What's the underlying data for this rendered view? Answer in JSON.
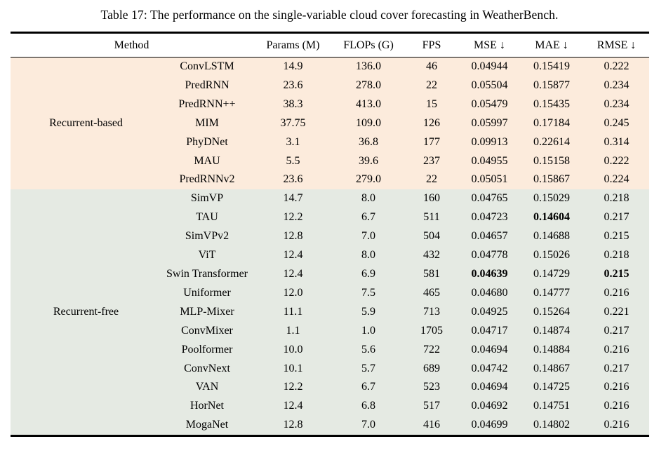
{
  "caption": "Table 17: The performance on the single-variable cloud cover forecasting in WeatherBench.",
  "table": {
    "header": {
      "method": "Method",
      "params": "Params (M)",
      "flops": "FLOPs (G)",
      "fps": "FPS",
      "mse": "MSE ↓",
      "mae": "MAE ↓",
      "rmse": "RMSE ↓"
    },
    "group_colors": {
      "recurrent_based": "#fcebdc",
      "recurrent_free": "#e5eae3"
    },
    "groups": [
      {
        "label": "Recurrent-based",
        "color": "#fcebdc",
        "rows": [
          {
            "cells": [
              "ConvLSTM",
              "14.9",
              "136.0",
              "46",
              "0.04944",
              "0.15419",
              "0.222"
            ],
            "bold": []
          },
          {
            "cells": [
              "PredRNN",
              "23.6",
              "278.0",
              "22",
              "0.05504",
              "0.15877",
              "0.234"
            ],
            "bold": []
          },
          {
            "cells": [
              "PredRNN++",
              "38.3",
              "413.0",
              "15",
              "0.05479",
              "0.15435",
              "0.234"
            ],
            "bold": []
          },
          {
            "cells": [
              "MIM",
              "37.75",
              "109.0",
              "126",
              "0.05997",
              "0.17184",
              "0.245"
            ],
            "bold": []
          },
          {
            "cells": [
              "PhyDNet",
              "3.1",
              "36.8",
              "177",
              "0.09913",
              "0.22614",
              "0.314"
            ],
            "bold": []
          },
          {
            "cells": [
              "MAU",
              "5.5",
              "39.6",
              "237",
              "0.04955",
              "0.15158",
              "0.222"
            ],
            "bold": []
          },
          {
            "cells": [
              "PredRNNv2",
              "23.6",
              "279.0",
              "22",
              "0.05051",
              "0.15867",
              "0.224"
            ],
            "bold": []
          }
        ]
      },
      {
        "label": "Recurrent-free",
        "color": "#e5eae3",
        "rows": [
          {
            "cells": [
              "SimVP",
              "14.7",
              "8.0",
              "160",
              "0.04765",
              "0.15029",
              "0.218"
            ],
            "bold": []
          },
          {
            "cells": [
              "TAU",
              "12.2",
              "6.7",
              "511",
              "0.04723",
              "0.14604",
              "0.217"
            ],
            "bold": [
              5
            ]
          },
          {
            "cells": [
              "SimVPv2",
              "12.8",
              "7.0",
              "504",
              "0.04657",
              "0.14688",
              "0.215"
            ],
            "bold": []
          },
          {
            "cells": [
              "ViT",
              "12.4",
              "8.0",
              "432",
              "0.04778",
              "0.15026",
              "0.218"
            ],
            "bold": []
          },
          {
            "cells": [
              "Swin Transformer",
              "12.4",
              "6.9",
              "581",
              "0.04639",
              "0.14729",
              "0.215"
            ],
            "bold": [
              4,
              6
            ]
          },
          {
            "cells": [
              "Uniformer",
              "12.0",
              "7.5",
              "465",
              "0.04680",
              "0.14777",
              "0.216"
            ],
            "bold": []
          },
          {
            "cells": [
              "MLP-Mixer",
              "11.1",
              "5.9",
              "713",
              "0.04925",
              "0.15264",
              "0.221"
            ],
            "bold": []
          },
          {
            "cells": [
              "ConvMixer",
              "1.1",
              "1.0",
              "1705",
              "0.04717",
              "0.14874",
              "0.217"
            ],
            "bold": []
          },
          {
            "cells": [
              "Poolformer",
              "10.0",
              "5.6",
              "722",
              "0.04694",
              "0.14884",
              "0.216"
            ],
            "bold": []
          },
          {
            "cells": [
              "ConvNext",
              "10.1",
              "5.7",
              "689",
              "0.04742",
              "0.14867",
              "0.217"
            ],
            "bold": []
          },
          {
            "cells": [
              "VAN",
              "12.2",
              "6.7",
              "523",
              "0.04694",
              "0.14725",
              "0.216"
            ],
            "bold": []
          },
          {
            "cells": [
              "HorNet",
              "12.4",
              "6.8",
              "517",
              "0.04692",
              "0.14751",
              "0.216"
            ],
            "bold": []
          },
          {
            "cells": [
              "MogaNet",
              "12.8",
              "7.0",
              "416",
              "0.04699",
              "0.14802",
              "0.216"
            ],
            "bold": []
          }
        ]
      }
    ]
  }
}
